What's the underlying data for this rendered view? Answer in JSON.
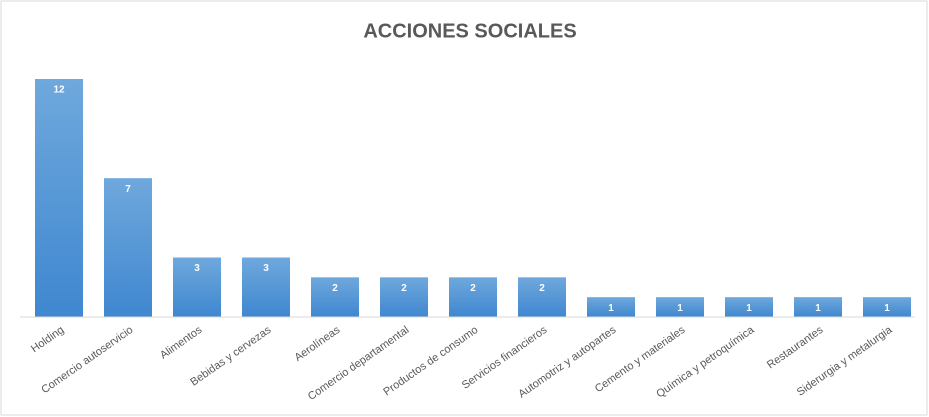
{
  "chart_data": {
    "type": "bar",
    "title": "ACCIONES SOCIALES",
    "categories": [
      "Holding",
      "Comercio autoservicio",
      "Alimentos",
      "Bebidas y cervezas",
      "Aerolíneas",
      "Comercio departamental",
      "Productos de consumo",
      "Servicios financieros",
      "Automotriz y autopartes",
      "Cemento y materiales",
      "Química y petroquímica",
      "Restaurantes",
      "Siderurgia y metalurgia"
    ],
    "values": [
      12,
      7,
      3,
      3,
      2,
      2,
      2,
      2,
      1,
      1,
      1,
      1,
      1
    ],
    "color": "#5b9bd5"
  }
}
